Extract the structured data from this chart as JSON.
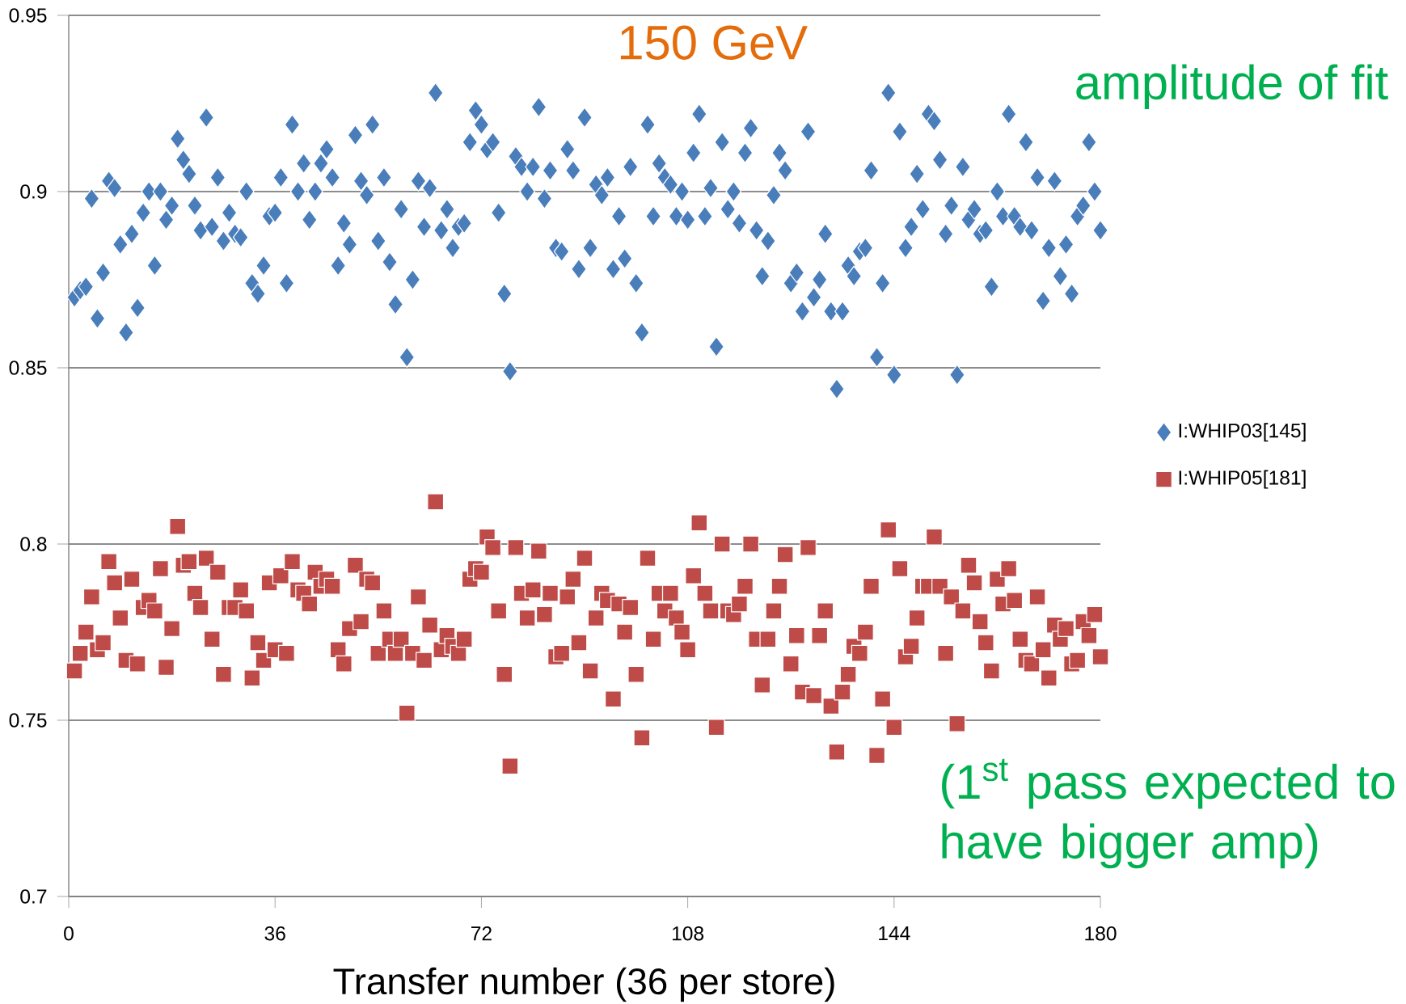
{
  "chart_data": {
    "type": "scatter",
    "xlabel": "Transfer number (36 per store)",
    "x": [
      1,
      2,
      3,
      4,
      5,
      6,
      7,
      8,
      9,
      10,
      11,
      12,
      13,
      14,
      15,
      16,
      17,
      18,
      19,
      20,
      21,
      22,
      23,
      24,
      25,
      26,
      27,
      28,
      29,
      30,
      31,
      32,
      33,
      34,
      35,
      36,
      37,
      38,
      39,
      40,
      41,
      42,
      43,
      44,
      45,
      46,
      47,
      48,
      49,
      50,
      51,
      52,
      53,
      54,
      55,
      56,
      57,
      58,
      59,
      60,
      61,
      62,
      63,
      64,
      65,
      66,
      67,
      68,
      69,
      70,
      71,
      72,
      73,
      74,
      75,
      76,
      77,
      78,
      79,
      80,
      81,
      82,
      83,
      84,
      85,
      86,
      87,
      88,
      89,
      90,
      91,
      92,
      93,
      94,
      95,
      96,
      97,
      98,
      99,
      100,
      101,
      102,
      103,
      104,
      105,
      106,
      107,
      108,
      109,
      110,
      111,
      112,
      113,
      114,
      115,
      116,
      117,
      118,
      119,
      120,
      121,
      122,
      123,
      124,
      125,
      126,
      127,
      128,
      129,
      130,
      131,
      132,
      133,
      134,
      135,
      136,
      137,
      138,
      139,
      140,
      141,
      142,
      143,
      144,
      145,
      146,
      147,
      148,
      149,
      150,
      151,
      152,
      153,
      154,
      155,
      156,
      157,
      158,
      159,
      160,
      161,
      162,
      163,
      164,
      165,
      166,
      167,
      168,
      169,
      170,
      171,
      172,
      173,
      174,
      175,
      176,
      177,
      178,
      179,
      180
    ],
    "series": [
      {
        "name": "I:WHIP03[145]",
        "color": "#4a7ebb",
        "marker": "diamond",
        "values": [
          0.87,
          0.872,
          0.873,
          0.898,
          0.864,
          0.877,
          0.903,
          0.901,
          0.885,
          0.86,
          0.888,
          0.867,
          0.894,
          0.9,
          0.879,
          0.9,
          0.892,
          0.896,
          0.915,
          0.909,
          0.905,
          0.896,
          0.889,
          0.921,
          0.89,
          0.904,
          0.886,
          0.894,
          0.888,
          0.887,
          0.9,
          0.874,
          0.871,
          0.879,
          0.893,
          0.894,
          0.904,
          0.874,
          0.919,
          0.9,
          0.908,
          0.892,
          0.9,
          0.908,
          0.912,
          0.904,
          0.879,
          0.891,
          0.885,
          0.916,
          0.903,
          0.899,
          0.919,
          0.886,
          0.904,
          0.88,
          0.868,
          0.895,
          0.853,
          0.875,
          0.903,
          0.89,
          0.901,
          0.928,
          0.889,
          0.895,
          0.884,
          0.89,
          0.891,
          0.914,
          0.923,
          0.919,
          0.912,
          0.914,
          0.894,
          0.871,
          0.849,
          0.91,
          0.907,
          0.9,
          0.907,
          0.924,
          0.898,
          0.906,
          0.884,
          0.883,
          0.912,
          0.906,
          0.878,
          0.921,
          0.884,
          0.902,
          0.899,
          0.904,
          0.878,
          0.893,
          0.881,
          0.907,
          0.874,
          0.86,
          0.919,
          0.893,
          0.908,
          0.904,
          0.902,
          0.893,
          0.9,
          0.892,
          0.911,
          0.922,
          0.893,
          0.901,
          0.856,
          0.914,
          0.895,
          0.9,
          0.891,
          0.911,
          0.918,
          0.889,
          0.876,
          0.886,
          0.899,
          0.911,
          0.906,
          0.874,
          0.877,
          0.866,
          0.917,
          0.87,
          0.875,
          0.888,
          0.866,
          0.844,
          0.866,
          0.879,
          0.876,
          0.883,
          0.884,
          0.906,
          0.853,
          0.874,
          0.928,
          0.848,
          0.917,
          0.884,
          0.89,
          0.905,
          0.895,
          0.922,
          0.92,
          0.909,
          0.888,
          0.896,
          0.848,
          0.907,
          0.892,
          0.895,
          0.888,
          0.889,
          0.873,
          0.9,
          0.893,
          0.922,
          0.893,
          0.89,
          0.914,
          0.889,
          0.904,
          0.869,
          0.884,
          0.903,
          0.876,
          0.885,
          0.871,
          0.893,
          0.896,
          0.914,
          0.9,
          0.889
        ]
      },
      {
        "name": "I:WHIP05[181]",
        "color": "#be4b48",
        "marker": "square",
        "values": [
          0.764,
          0.769,
          0.775,
          0.785,
          0.77,
          0.772,
          0.795,
          0.789,
          0.779,
          0.767,
          0.79,
          0.766,
          0.782,
          0.784,
          0.781,
          0.793,
          0.765,
          0.776,
          0.805,
          0.794,
          0.795,
          0.786,
          0.782,
          0.796,
          0.773,
          0.792,
          0.763,
          0.782,
          0.782,
          0.787,
          0.781,
          0.762,
          0.772,
          0.767,
          0.789,
          0.77,
          0.791,
          0.769,
          0.795,
          0.787,
          0.786,
          0.783,
          0.792,
          0.788,
          0.79,
          0.788,
          0.77,
          0.766,
          0.776,
          0.794,
          0.778,
          0.79,
          0.789,
          0.769,
          0.781,
          0.773,
          0.769,
          0.773,
          0.752,
          0.769,
          0.785,
          0.767,
          0.777,
          0.812,
          0.77,
          0.774,
          0.771,
          0.769,
          0.773,
          0.79,
          0.793,
          0.792,
          0.802,
          0.799,
          0.781,
          0.763,
          0.737,
          0.799,
          0.786,
          0.779,
          0.787,
          0.798,
          0.78,
          0.786,
          0.768,
          0.769,
          0.785,
          0.79,
          0.772,
          0.796,
          0.764,
          0.779,
          0.786,
          0.784,
          0.756,
          0.783,
          0.775,
          0.782,
          0.763,
          0.745,
          0.796,
          0.773,
          0.786,
          0.781,
          0.786,
          0.779,
          0.775,
          0.77,
          0.791,
          0.806,
          0.786,
          0.781,
          0.748,
          0.8,
          0.781,
          0.78,
          0.783,
          0.788,
          0.8,
          0.773,
          0.76,
          0.773,
          0.781,
          0.788,
          0.797,
          0.766,
          0.774,
          0.758,
          0.799,
          0.757,
          0.774,
          0.781,
          0.754,
          0.741,
          0.758,
          0.763,
          0.771,
          0.769,
          0.775,
          0.788,
          0.74,
          0.756,
          0.804,
          0.748,
          0.793,
          0.768,
          0.771,
          0.779,
          0.788,
          0.788,
          0.802,
          0.788,
          0.769,
          0.785,
          0.749,
          0.781,
          0.794,
          0.789,
          0.778,
          0.772,
          0.764,
          0.79,
          0.783,
          0.793,
          0.784,
          0.773,
          0.767,
          0.766,
          0.785,
          0.77,
          0.762,
          0.777,
          0.773,
          0.776,
          0.766,
          0.767,
          0.778,
          0.774,
          0.78,
          0.768
        ]
      }
    ],
    "xlim": [
      0,
      180
    ],
    "xticks": [
      0,
      36,
      72,
      108,
      144,
      180
    ],
    "ylim": [
      0.7,
      0.95
    ],
    "yticks": [
      0.7,
      0.75,
      0.8,
      0.85,
      0.9,
      0.95
    ],
    "grid": "y",
    "legend": "right",
    "annotations": [
      "150 GeV",
      "amplitude of fit",
      "(1$^{st}$ pass expected to have bigger amp)"
    ]
  }
}
